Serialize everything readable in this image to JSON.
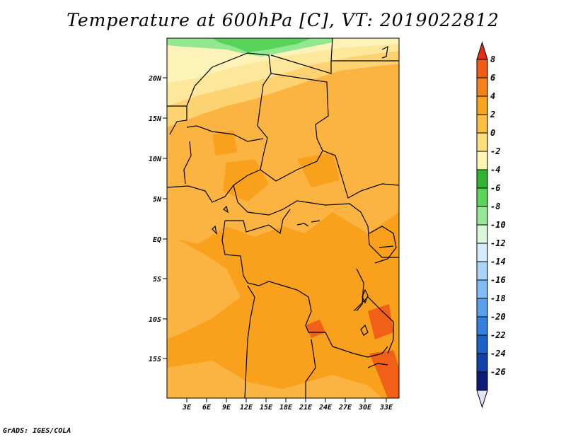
{
  "title": "Temperature at 600hPa [C], VT: 2019022812",
  "footer": "GrADS: IGES/COLA",
  "map": {
    "lat_labels": [
      "20N",
      "15N",
      "10N",
      "5N",
      "EQ",
      "5S",
      "10S",
      "15S"
    ],
    "lon_labels": [
      "3E",
      "6E",
      "9E",
      "12E",
      "15E",
      "18E",
      "21E",
      "24E",
      "27E",
      "30E",
      "33E"
    ]
  },
  "colorbar": {
    "levels": [
      "8",
      "6",
      "4",
      "2",
      "0",
      "-2",
      "-4",
      "-6",
      "-8",
      "-10",
      "-12",
      "-14",
      "-16",
      "-18",
      "-20",
      "-22",
      "-24",
      "-26"
    ],
    "colors": [
      "#e03018",
      "#f05c14",
      "#f4811c",
      "#f7a31e",
      "#fbbe42",
      "#fde07c",
      "#fdf5b2",
      "#32b432",
      "#5ad45a",
      "#96e896",
      "#d8f8d8",
      "#d4ecfc",
      "#aad4f8",
      "#82bcf4",
      "#5aa0ec",
      "#3480e0",
      "#1c60c8",
      "#1040a8",
      "#0c1c78",
      "#e0e4f4"
    ]
  },
  "fields": {
    "warm": "#f9a01d",
    "mid": "#fbb442",
    "cool": "#fdd270",
    "light": "#fde79a",
    "pale": "#fdf3b8",
    "green": "#58d45a",
    "light_green": "#92e890",
    "hot": "#f06018"
  }
}
